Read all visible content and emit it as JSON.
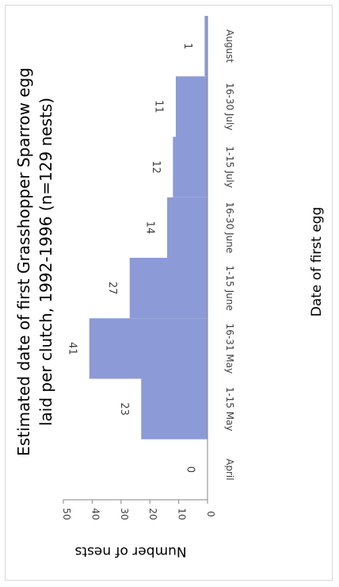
{
  "chart_data": {
    "type": "bar",
    "title_lines": [
      "Estimated date of first Grasshopper  Sparrow egg",
      "laid per clutch, 1992-1996 (n=129 nests)"
    ],
    "xlabel": "Date of first egg",
    "ylabel": "Number of nests",
    "categories": [
      "April",
      "1-15 May",
      "16-31 May",
      "1-15 June",
      "16-30 June",
      "1-15 July",
      "16-30 July",
      "August"
    ],
    "values": [
      0,
      23,
      41,
      27,
      14,
      12,
      11,
      1
    ],
    "data_labels": [
      "0",
      "23",
      "41",
      "27",
      "14",
      "12",
      "11",
      "1"
    ],
    "ylim": [
      0,
      50
    ],
    "yticks": [
      0,
      10,
      20,
      30,
      40,
      50
    ],
    "bar_color": "#8c9ad7",
    "grid": false,
    "legend": "none",
    "orientation": "rotated 90 degrees clockwise"
  }
}
